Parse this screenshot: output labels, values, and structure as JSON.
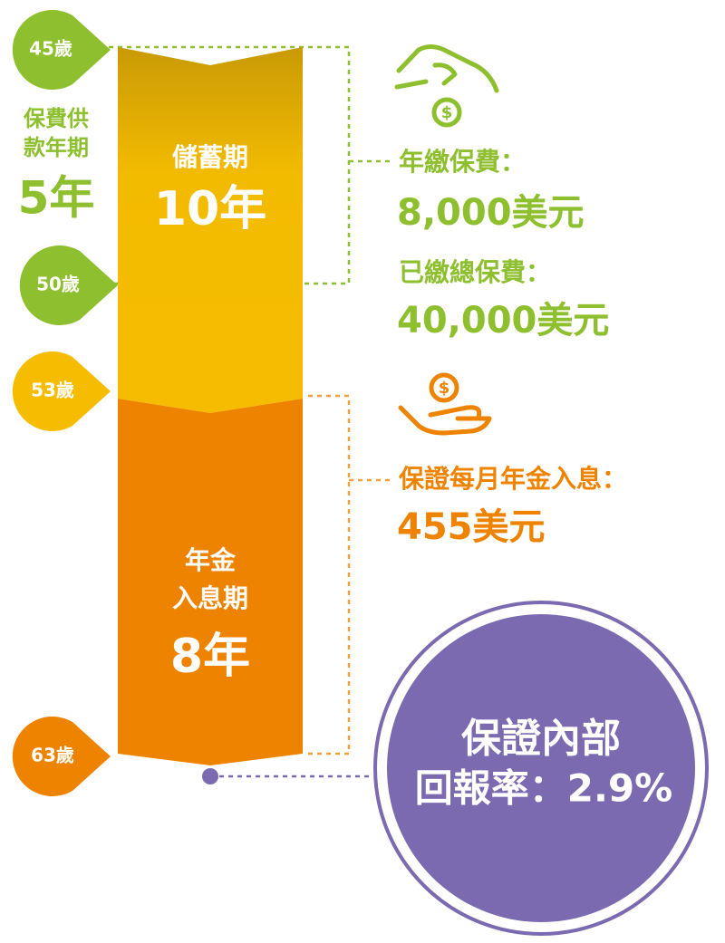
{
  "ages": [
    "45歲",
    "50歲",
    "53歲",
    "63歲"
  ],
  "premium_term": {
    "label_lines": [
      "保費供",
      "款年期"
    ],
    "value": "5年"
  },
  "phases": [
    {
      "lines": [
        "儲蓄期"
      ],
      "duration": "10年"
    },
    {
      "lines": [
        "年金",
        "入息期"
      ],
      "duration": "8年"
    }
  ],
  "details": [
    {
      "label": "年繳保費：",
      "value": "8,000美元"
    },
    {
      "label": "已繳總保費：",
      "value": "40,000美元"
    },
    {
      "label": "保證每月年金入息：",
      "value": "455美元"
    }
  ],
  "irr": {
    "lines": [
      "保證內部",
      "回報率：2.9%"
    ]
  }
}
